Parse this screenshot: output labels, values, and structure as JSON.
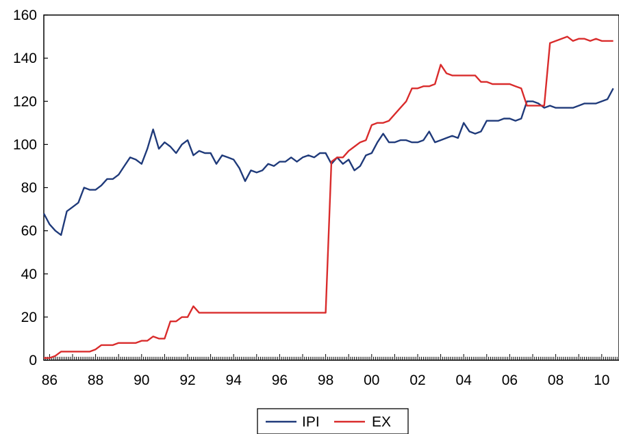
{
  "chart_data": {
    "type": "line",
    "title": "",
    "xlabel": "",
    "ylabel": "",
    "x_range": [
      1985.75,
      2010.75
    ],
    "ylim": [
      0,
      160
    ],
    "y_ticks": [
      0,
      20,
      40,
      60,
      80,
      100,
      120,
      140,
      160
    ],
    "x_tick_labels": [
      {
        "year": 1986,
        "label": "86"
      },
      {
        "year": 1988,
        "label": "88"
      },
      {
        "year": 1990,
        "label": "90"
      },
      {
        "year": 1992,
        "label": "92"
      },
      {
        "year": 1994,
        "label": "94"
      },
      {
        "year": 1996,
        "label": "96"
      },
      {
        "year": 1998,
        "label": "98"
      },
      {
        "year": 2000,
        "label": "00"
      },
      {
        "year": 2002,
        "label": "02"
      },
      {
        "year": 2004,
        "label": "04"
      },
      {
        "year": 2006,
        "label": "06"
      },
      {
        "year": 2008,
        "label": "08"
      },
      {
        "year": 2010,
        "label": "10"
      }
    ],
    "grid": false,
    "legend_position": "bottom-center",
    "series": [
      {
        "name": "IPI",
        "color": "#1f3a7a",
        "x": [
          1985.75,
          1986.0,
          1986.25,
          1986.5,
          1986.75,
          1987.0,
          1987.25,
          1987.5,
          1987.75,
          1988.0,
          1988.25,
          1988.5,
          1988.75,
          1989.0,
          1989.25,
          1989.5,
          1989.75,
          1990.0,
          1990.25,
          1990.5,
          1990.75,
          1991.0,
          1991.25,
          1991.5,
          1991.75,
          1992.0,
          1992.25,
          1992.5,
          1992.75,
          1993.0,
          1993.25,
          1993.5,
          1993.75,
          1994.0,
          1994.25,
          1994.5,
          1994.75,
          1995.0,
          1995.25,
          1995.5,
          1995.75,
          1996.0,
          1996.25,
          1996.5,
          1996.75,
          1997.0,
          1997.25,
          1997.5,
          1997.75,
          1998.0,
          1998.25,
          1998.5,
          1998.75,
          1999.0,
          1999.25,
          1999.5,
          1999.75,
          2000.0,
          2000.25,
          2000.5,
          2000.75,
          2001.0,
          2001.25,
          2001.5,
          2001.75,
          2002.0,
          2002.25,
          2002.5,
          2002.75,
          2003.0,
          2003.25,
          2003.5,
          2003.75,
          2004.0,
          2004.25,
          2004.5,
          2004.75,
          2005.0,
          2005.25,
          2005.5,
          2005.75,
          2006.0,
          2006.25,
          2006.5,
          2006.75,
          2007.0,
          2007.25,
          2007.5,
          2007.75,
          2008.0,
          2008.25,
          2008.5,
          2008.75,
          2009.0,
          2009.25,
          2009.5,
          2009.75,
          2010.0,
          2010.25,
          2010.5
        ],
        "values": [
          68,
          63,
          60,
          58,
          69,
          71,
          73,
          80,
          79,
          79,
          81,
          84,
          84,
          86,
          90,
          94,
          93,
          91,
          98,
          107,
          98,
          101,
          99,
          96,
          100,
          102,
          95,
          97,
          96,
          96,
          91,
          95,
          94,
          93,
          89,
          83,
          88,
          87,
          88,
          91,
          90,
          92,
          92,
          94,
          92,
          94,
          95,
          94,
          96,
          96,
          91,
          94,
          91,
          93,
          88,
          90,
          95,
          96,
          101,
          105,
          101,
          101,
          102,
          102,
          101,
          101,
          102,
          106,
          101,
          102,
          103,
          104,
          103,
          110,
          106,
          105,
          106,
          111,
          111,
          111,
          112,
          112,
          111,
          112,
          120,
          120,
          119,
          117,
          118,
          117,
          117,
          117,
          117,
          118,
          119,
          119,
          119,
          120,
          121,
          126
        ]
      },
      {
        "name": "EX",
        "color": "#d92b2b",
        "x": [
          1985.75,
          1986.0,
          1986.25,
          1986.5,
          1986.75,
          1987.0,
          1987.25,
          1987.5,
          1987.75,
          1988.0,
          1988.25,
          1988.5,
          1988.75,
          1989.0,
          1989.25,
          1989.5,
          1989.75,
          1990.0,
          1990.25,
          1990.5,
          1990.75,
          1991.0,
          1991.25,
          1991.5,
          1991.75,
          1992.0,
          1992.25,
          1992.5,
          1992.75,
          1993.0,
          1993.25,
          1998.0,
          1998.25,
          1998.5,
          1998.75,
          1999.0,
          1999.25,
          1999.5,
          1999.75,
          2000.0,
          2000.25,
          2000.5,
          2000.75,
          2001.0,
          2001.25,
          2001.5,
          2001.75,
          2002.0,
          2002.25,
          2002.5,
          2002.75,
          2003.0,
          2003.25,
          2003.5,
          2003.75,
          2004.0,
          2004.25,
          2004.5,
          2004.75,
          2005.0,
          2005.25,
          2005.5,
          2005.75,
          2006.0,
          2006.25,
          2006.5,
          2006.75,
          2007.0,
          2007.25,
          2007.5,
          2007.75,
          2008.0,
          2008.25,
          2008.5,
          2008.75,
          2009.0,
          2009.25,
          2009.5,
          2009.75,
          2010.0,
          2010.25,
          2010.5
        ],
        "values": [
          1,
          1,
          2,
          4,
          4,
          4,
          4,
          4,
          4,
          5,
          7,
          7,
          7,
          8,
          8,
          8,
          8,
          9,
          9,
          11,
          10,
          10,
          18,
          18,
          20,
          20,
          25,
          22,
          22,
          22,
          22,
          22,
          92,
          94,
          94,
          97,
          99,
          101,
          102,
          109,
          110,
          110,
          111,
          114,
          117,
          120,
          126,
          126,
          127,
          127,
          128,
          137,
          133,
          132,
          132,
          132,
          132,
          132,
          129,
          129,
          128,
          128,
          128,
          128,
          127,
          126,
          118,
          118,
          118,
          118,
          147,
          148,
          149,
          150,
          148,
          149,
          149,
          148,
          149,
          148,
          148,
          148
        ]
      }
    ]
  }
}
